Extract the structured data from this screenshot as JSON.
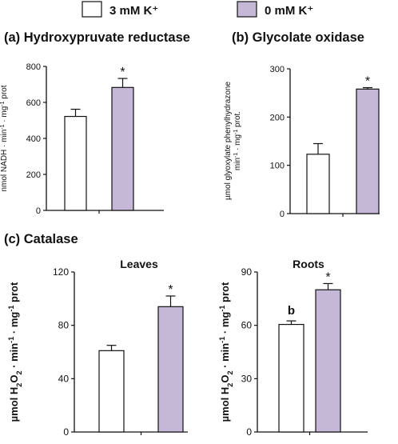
{
  "legend": {
    "items": [
      {
        "label": "3 mM K⁺",
        "color": "#ffffff"
      },
      {
        "label": "0 mM K⁺",
        "color": "#c5b7d6"
      }
    ]
  },
  "section_label": "(c) Catalase",
  "chart_data": [
    {
      "type": "bar",
      "title": "(a) Hydroxypruvate reductase",
      "ylabel_parts": [
        "nmol NADH · min",
        "-1",
        " · mg",
        "-1",
        " prot"
      ],
      "categories": [
        "3 mM K⁺",
        "0 mM K⁺"
      ],
      "values": [
        522,
        683
      ],
      "errors": [
        40,
        50
      ],
      "annotations": [
        "",
        "*"
      ],
      "ylim": [
        0,
        800
      ],
      "yticks": [
        0,
        200,
        400,
        600,
        800
      ]
    },
    {
      "type": "bar",
      "title": "(b) Glycolate oxidase",
      "ylabel_lines": [
        [
          "µmol glyoxylate phenylhydrazone"
        ],
        [
          "min",
          "-1",
          " · mg",
          "-1",
          " prot."
        ]
      ],
      "categories": [
        "3 mM K⁺",
        "0 mM K⁺"
      ],
      "values": [
        123,
        258
      ],
      "errors": [
        22,
        3
      ],
      "annotations": [
        "",
        "*"
      ],
      "ylim": [
        0,
        300
      ],
      "yticks": [
        0,
        100,
        200,
        300
      ]
    },
    {
      "type": "bar",
      "title": "Leaves",
      "ylabel_parts": [
        "µmol H",
        "2",
        "O",
        "2",
        " · min",
        "-1",
        " · mg",
        "-1",
        "  prot"
      ],
      "categories": [
        "3 mM K⁺",
        "0 mM K⁺"
      ],
      "values": [
        61,
        94
      ],
      "errors": [
        4,
        8
      ],
      "annotations": [
        "",
        "*"
      ],
      "ylim": [
        0,
        120
      ],
      "yticks": [
        0,
        40,
        80,
        120
      ]
    },
    {
      "type": "bar",
      "title": "Roots",
      "ylabel_parts": [
        "µmol H",
        "2",
        "O",
        "2",
        " · min",
        "-1",
        " · mg",
        "-1",
        "  prot"
      ],
      "categories": [
        "3 mM K⁺",
        "0 mM K⁺"
      ],
      "values": [
        60.5,
        80
      ],
      "errors": [
        2,
        3.5
      ],
      "annotations": [
        "b",
        "*"
      ],
      "ylim": [
        0,
        90
      ],
      "yticks": [
        0,
        30,
        60,
        90
      ]
    }
  ]
}
